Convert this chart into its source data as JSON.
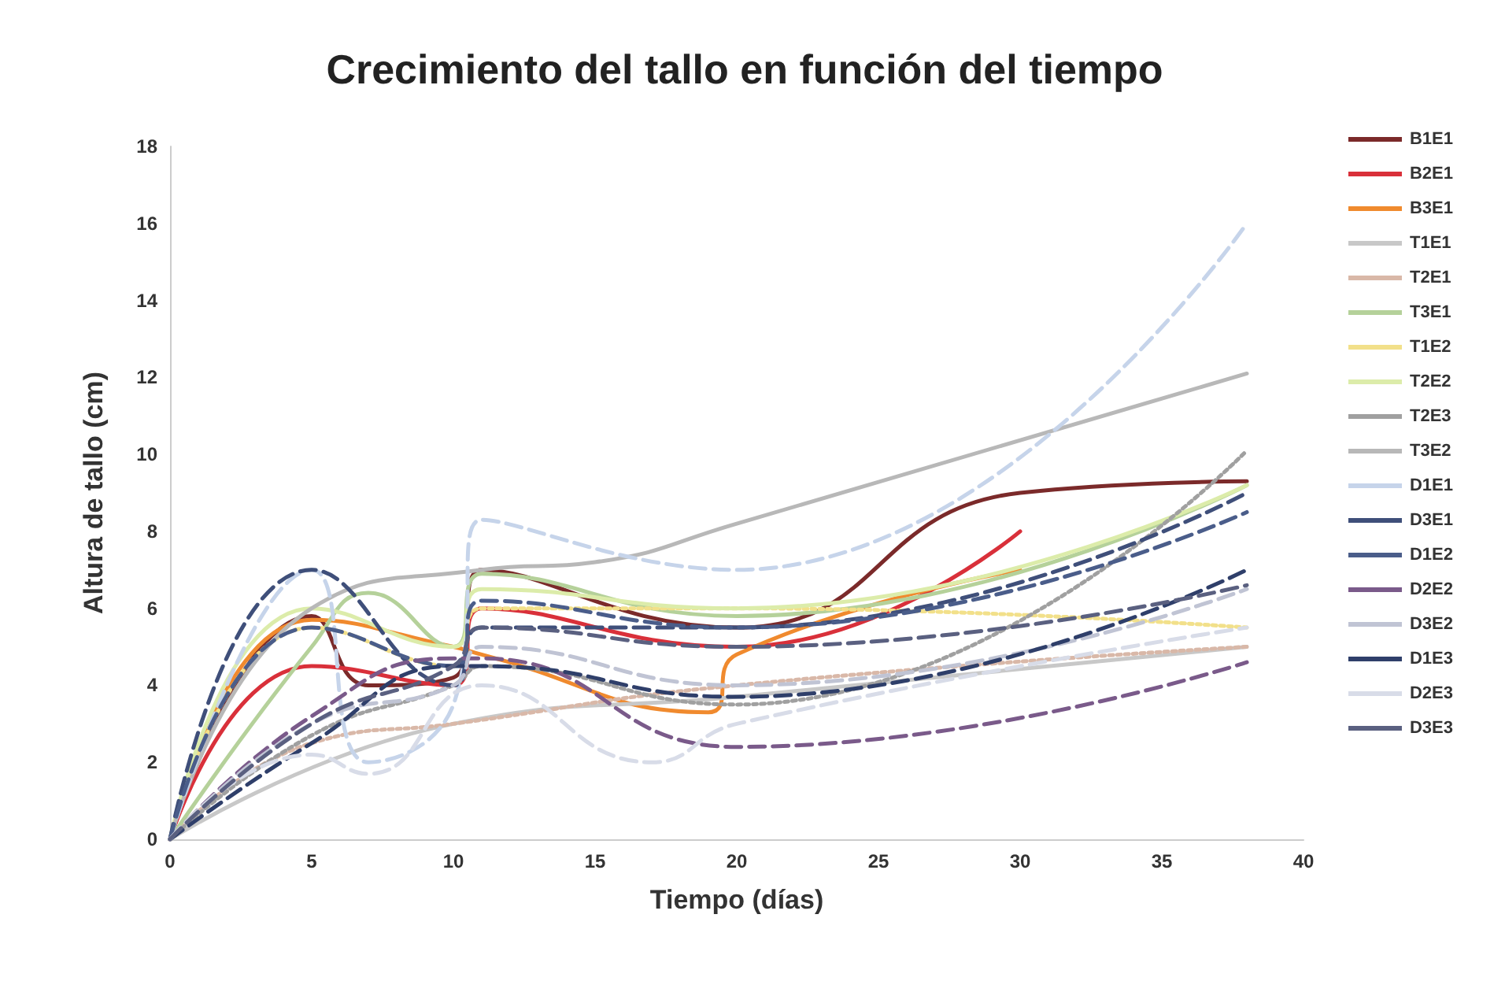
{
  "chart_data": {
    "type": "line",
    "title": "Crecimiento del tallo en función del tiempo",
    "xlabel": "Tiempo (días)",
    "ylabel": "Altura de tallo (cm)",
    "xlim": [
      0,
      40
    ],
    "xticks": [
      0,
      5,
      10,
      15,
      20,
      25,
      30,
      35,
      40
    ],
    "ylim": [
      0,
      18
    ],
    "yticks": [
      0,
      2,
      4,
      6,
      8,
      10,
      12,
      14,
      16,
      18
    ],
    "grid": false,
    "legend": "right",
    "marker": "none",
    "series": [
      {
        "name": "B1E1",
        "color": "#7b2a2a",
        "line_style": "solid",
        "x": [
          0,
          5,
          7,
          10,
          11,
          20,
          30,
          38
        ],
        "values": [
          0,
          5.8,
          4,
          4.2,
          7,
          5.5,
          9,
          9.3
        ]
      },
      {
        "name": "B2E1",
        "color": "#d9303a",
        "line_style": "solid",
        "x": [
          0,
          5,
          10,
          11,
          20,
          30
        ],
        "values": [
          0,
          4.5,
          4,
          6,
          5,
          8
        ]
      },
      {
        "name": "B3E1",
        "color": "#f08a2e",
        "line_style": "solid",
        "x": [
          0,
          5,
          10,
          11,
          19,
          20,
          30
        ],
        "values": [
          0,
          5.7,
          5,
          4.8,
          3.3,
          4.8,
          7
        ]
      },
      {
        "name": "T1E1",
        "color": "#c8c8c8",
        "line_style": "solid",
        "x": [
          0,
          10,
          20,
          38
        ],
        "values": [
          0,
          3,
          3.7,
          5
        ]
      },
      {
        "name": "T2E1",
        "color": "#d9b8a8",
        "line_style": "dotted",
        "x": [
          0,
          5,
          10,
          20,
          38
        ],
        "values": [
          0,
          2.5,
          3,
          4,
          5
        ]
      },
      {
        "name": "T3E1",
        "color": "#b5d19a",
        "line_style": "solid",
        "x": [
          0,
          5,
          7,
          10,
          11,
          20,
          38
        ],
        "values": [
          0,
          5,
          6.4,
          5,
          6.9,
          5.8,
          9.2
        ]
      },
      {
        "name": "T1E2",
        "color": "#f2e08a",
        "line_style": "dotted",
        "x": [
          0,
          5,
          10,
          11,
          20,
          38
        ],
        "values": [
          0,
          5.5,
          4.5,
          6,
          6,
          5.5
        ]
      },
      {
        "name": "T2E2",
        "color": "#dcecaa",
        "line_style": "solid",
        "x": [
          0,
          5,
          10,
          11,
          20,
          38
        ],
        "values": [
          0,
          6,
          5,
          6.5,
          6,
          9.2
        ]
      },
      {
        "name": "T2E3",
        "color": "#a0a0a0",
        "line_style": "dotted",
        "x": [
          0,
          5,
          10,
          11,
          20,
          38
        ],
        "values": [
          0,
          2.7,
          4,
          4.5,
          3.5,
          10.1
        ]
      },
      {
        "name": "T3E2",
        "color": "#b8b8b8",
        "line_style": "solid",
        "x": [
          0,
          5,
          11,
          15,
          20,
          38
        ],
        "values": [
          0,
          6,
          7,
          7.2,
          8.2,
          12.1
        ]
      },
      {
        "name": "D1E1",
        "color": "#c6d4ea",
        "line_style": "dashed",
        "x": [
          0,
          5,
          7,
          10,
          11,
          20,
          38
        ],
        "values": [
          0,
          7,
          2,
          3.5,
          8.3,
          7,
          16
        ]
      },
      {
        "name": "D3E1",
        "color": "#3f4f7a",
        "line_style": "dashed",
        "x": [
          0,
          5,
          10,
          11,
          20,
          38
        ],
        "values": [
          0,
          7,
          4,
          5.5,
          5.5,
          9
        ]
      },
      {
        "name": "D1E2",
        "color": "#4a5d8a",
        "line_style": "dashed",
        "x": [
          0,
          5,
          10,
          11,
          20,
          38
        ],
        "values": [
          0,
          5.5,
          4.5,
          6.2,
          5.5,
          8.5
        ]
      },
      {
        "name": "D2E2",
        "color": "#7a5a8a",
        "line_style": "dashed",
        "x": [
          0,
          5,
          10,
          11,
          20,
          38
        ],
        "values": [
          0,
          3.2,
          4.7,
          4.7,
          2.4,
          4.6
        ]
      },
      {
        "name": "D3E2",
        "color": "#c0c4d4",
        "line_style": "dashed",
        "x": [
          0,
          5,
          10,
          11,
          20,
          38
        ],
        "values": [
          0,
          3,
          4,
          5,
          4,
          6.5
        ]
      },
      {
        "name": "D1E3",
        "color": "#2f3f6a",
        "line_style": "dashed",
        "x": [
          0,
          5,
          10,
          11,
          20,
          38
        ],
        "values": [
          0,
          2.5,
          4.5,
          4.5,
          3.7,
          7
        ]
      },
      {
        "name": "D2E3",
        "color": "#d8dce8",
        "line_style": "dashed",
        "x": [
          0,
          5,
          7,
          11,
          17,
          20,
          38
        ],
        "values": [
          0,
          2.2,
          1.7,
          4,
          2,
          3,
          5.5
        ]
      },
      {
        "name": "D3E3",
        "color": "#5a6080",
        "line_style": "dashed",
        "x": [
          0,
          5,
          10,
          11,
          20,
          38
        ],
        "values": [
          0,
          3,
          4.5,
          5.5,
          5,
          6.6
        ]
      }
    ]
  }
}
